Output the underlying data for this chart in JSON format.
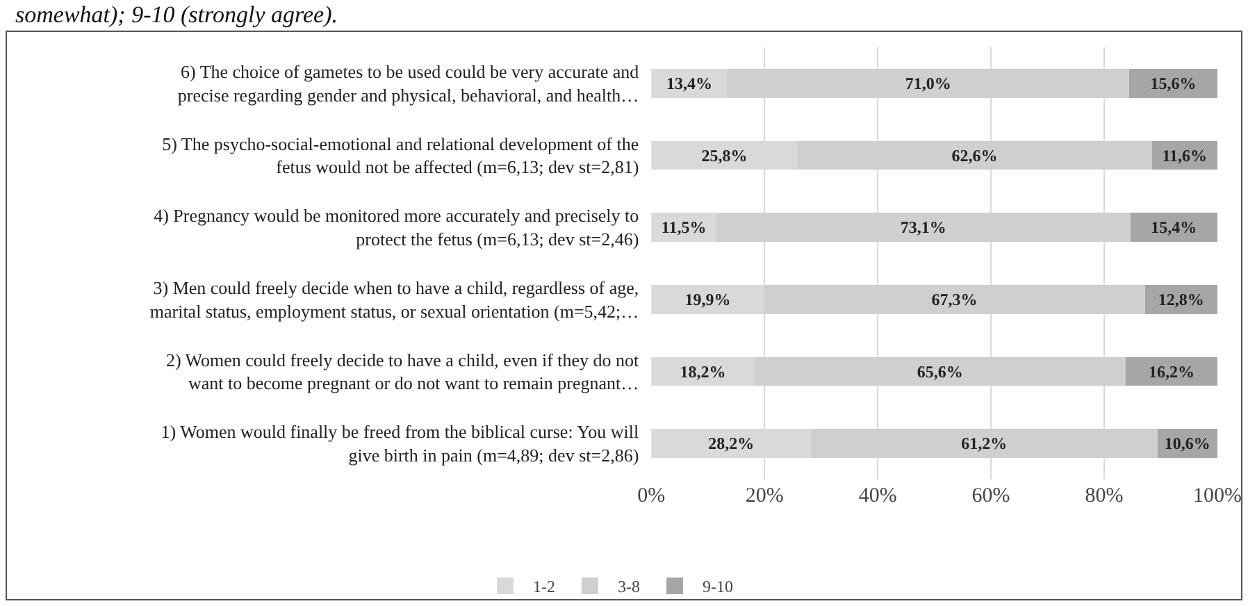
{
  "chart_data": {
    "type": "bar",
    "orientation": "horizontal",
    "stacked": true,
    "annotations": [
      "somewhat); 9-10 (strongly agree)."
    ],
    "categories": [
      "6) The choice of gametes to be used could be very accurate and precise regarding gender and physical, behavioral, and health…",
      "5) The psycho-social-emotional and relational development of the fetus would not be affected (m=6,13; dev st=2,81)",
      "4) Pregnancy would be monitored more accurately and precisely to protect the fetus (m=6,13; dev st=2,46)",
      "3) Men could freely decide when to have a child, regardless of age, marital status, employment status, or sexual orientation (m=5,42;…",
      "2) Women could freely decide to have a child, even if they do not want to become pregnant or do not want to remain pregnant…",
      "1) Women would finally be freed from the biblical curse: You will give birth in pain (m=4,89; dev st=2,86)"
    ],
    "series": [
      {
        "name": "1-2",
        "color": "#d9d9d9",
        "values": [
          13.4,
          25.8,
          11.5,
          19.9,
          18.2,
          28.2
        ],
        "value_labels": [
          "13,4%",
          "25,8%",
          "11,5%",
          "19,9%",
          "18,2%",
          "28,2%"
        ]
      },
      {
        "name": "3-8",
        "color": "#cfcfcf",
        "values": [
          71.0,
          62.6,
          73.1,
          67.3,
          65.6,
          61.2
        ],
        "value_labels": [
          "71,0%",
          "62,6%",
          "73,1%",
          "67,3%",
          "65,6%",
          "61,2%"
        ]
      },
      {
        "name": "9-10",
        "color": "#a6a6a6",
        "values": [
          15.6,
          11.6,
          15.4,
          12.8,
          16.2,
          10.6
        ],
        "value_labels": [
          "15,6%",
          "11,6%",
          "15,4%",
          "12,8%",
          "16,2%",
          "10,6%"
        ]
      }
    ],
    "xlim": [
      0,
      100
    ],
    "xticks": [
      {
        "value": 0,
        "label": "0%"
      },
      {
        "value": 20,
        "label": "20%"
      },
      {
        "value": 40,
        "label": "40%"
      },
      {
        "value": 60,
        "label": "60%"
      },
      {
        "value": 80,
        "label": "80%"
      },
      {
        "value": 100,
        "label": "100%"
      }
    ],
    "grid": "x",
    "legend": "bottom"
  }
}
